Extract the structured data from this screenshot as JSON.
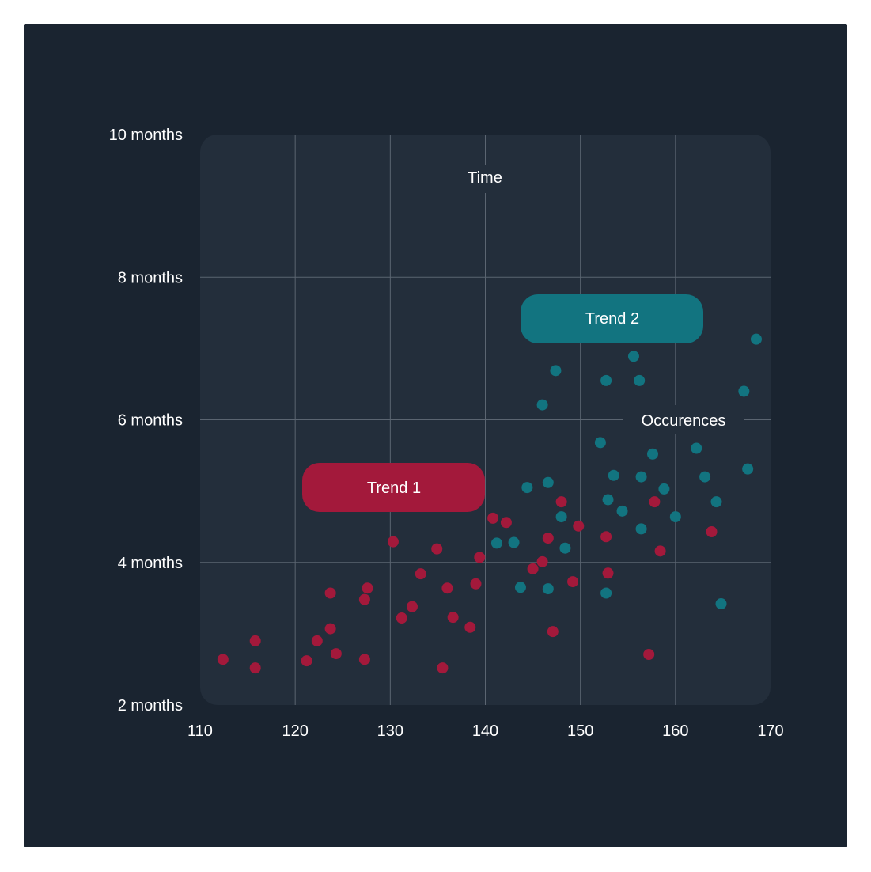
{
  "chart_data": {
    "type": "scatter",
    "x_ticks": [
      "110",
      "120",
      "130",
      "140",
      "150",
      "160",
      "170"
    ],
    "y_ticks": [
      "10 months",
      "8 months",
      "6 months",
      "4 months",
      "2 months"
    ],
    "xlim": [
      110,
      170
    ],
    "ylim": [
      2,
      10
    ],
    "xlabel": "Occurences",
    "ylabel": "Time",
    "grid": true,
    "annotations": [
      {
        "text": "Trend 1",
        "color": "#a3193b"
      },
      {
        "text": "Trend 2",
        "color": "#127480"
      }
    ],
    "series": [
      {
        "color": "#a3193b",
        "points": [
          [
            112.4,
            2.64
          ],
          [
            115.8,
            2.9
          ],
          [
            115.8,
            2.52
          ],
          [
            121.2,
            2.62
          ],
          [
            122.3,
            2.9
          ],
          [
            123.7,
            3.07
          ],
          [
            124.3,
            2.72
          ],
          [
            127.3,
            2.64
          ],
          [
            123.7,
            3.57
          ],
          [
            127.3,
            3.48
          ],
          [
            127.6,
            3.64
          ],
          [
            130.3,
            4.29
          ],
          [
            131.2,
            3.22
          ],
          [
            132.3,
            3.38
          ],
          [
            133.2,
            3.84
          ],
          [
            134.9,
            4.19
          ],
          [
            135.5,
            2.52
          ],
          [
            136.0,
            3.64
          ],
          [
            136.6,
            3.23
          ],
          [
            138.4,
            3.09
          ],
          [
            139.0,
            3.7
          ],
          [
            139.4,
            4.07
          ],
          [
            140.8,
            4.62
          ],
          [
            142.2,
            4.56
          ],
          [
            145.0,
            3.91
          ],
          [
            146.0,
            4.01
          ],
          [
            146.6,
            4.34
          ],
          [
            147.1,
            3.03
          ],
          [
            148.0,
            4.85
          ],
          [
            149.2,
            3.73
          ],
          [
            149.8,
            4.51
          ],
          [
            152.7,
            4.36
          ],
          [
            152.9,
            3.85
          ],
          [
            157.2,
            2.71
          ],
          [
            157.8,
            4.85
          ],
          [
            158.4,
            4.16
          ],
          [
            163.8,
            4.43
          ]
        ]
      },
      {
        "color": "#127480",
        "points": [
          [
            141.2,
            4.27
          ],
          [
            143.0,
            4.28
          ],
          [
            143.7,
            3.65
          ],
          [
            144.4,
            5.05
          ],
          [
            146.0,
            6.21
          ],
          [
            146.6,
            5.12
          ],
          [
            146.6,
            3.63
          ],
          [
            147.4,
            6.69
          ],
          [
            148.0,
            4.64
          ],
          [
            148.4,
            4.2
          ],
          [
            152.1,
            5.68
          ],
          [
            152.7,
            6.55
          ],
          [
            152.7,
            3.57
          ],
          [
            152.9,
            4.88
          ],
          [
            153.5,
            5.22
          ],
          [
            154.4,
            4.72
          ],
          [
            155.6,
            6.89
          ],
          [
            156.2,
            6.55
          ],
          [
            156.4,
            5.2
          ],
          [
            156.4,
            4.47
          ],
          [
            157.6,
            5.52
          ],
          [
            158.8,
            5.03
          ],
          [
            160.0,
            4.64
          ],
          [
            162.2,
            5.6
          ],
          [
            163.1,
            5.2
          ],
          [
            164.3,
            4.85
          ],
          [
            164.8,
            3.42
          ],
          [
            167.2,
            6.4
          ],
          [
            167.6,
            5.31
          ],
          [
            168.5,
            7.13
          ]
        ]
      }
    ]
  }
}
